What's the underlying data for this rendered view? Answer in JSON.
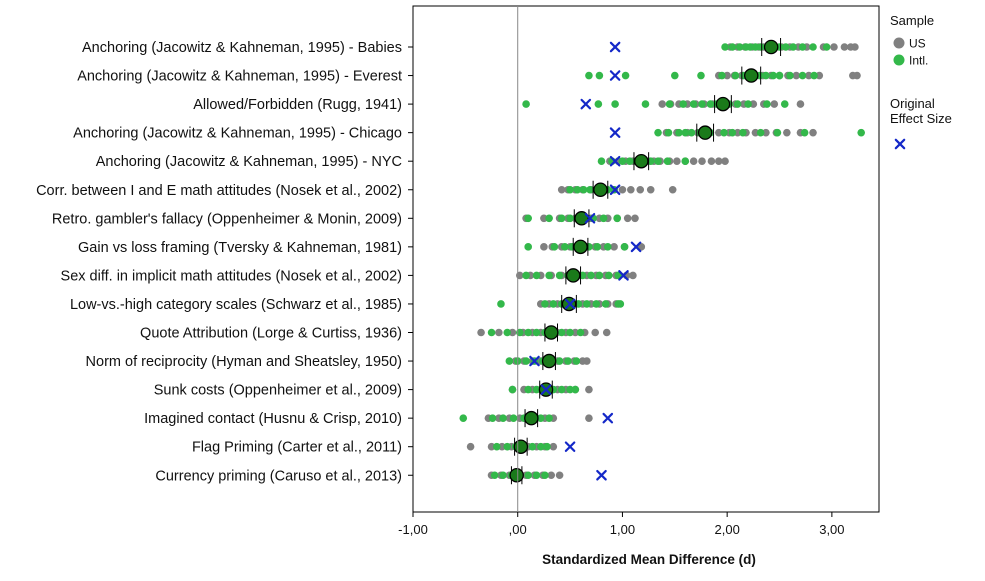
{
  "chart_data": {
    "type": "scatter",
    "xlabel": "Standardized Mean Difference (d)",
    "xlim": [
      -1.0,
      3.45
    ],
    "xticks": [
      -1,
      0,
      1,
      2,
      3
    ],
    "xtick_labels": [
      "-1,00",
      ",00",
      "1,00",
      "2,00",
      "3,00"
    ],
    "reference_line_x": 0,
    "grid": false,
    "legend": {
      "position": "right",
      "sample_title": "Sample",
      "items": [
        {
          "label": "US",
          "color": "#808080"
        },
        {
          "label": "Intl.",
          "color": "#33b84a"
        }
      ],
      "original_title_lines": [
        "Original",
        "Effect Size"
      ],
      "original_color": "#1428c8"
    },
    "colors": {
      "us": "#808080",
      "intl": "#33b84a",
      "mean_fill": "#1a7a1a",
      "original": "#1428c8"
    },
    "effects": [
      {
        "label": "Anchoring (Jacowitz & Kahneman, 1995) - Babies",
        "mean": 2.42,
        "ci": [
          2.33,
          2.51
        ],
        "original": 0.93,
        "us": [
          2.03,
          2.1,
          2.17,
          2.24,
          2.3,
          2.35,
          2.4,
          2.46,
          2.52,
          2.6,
          2.68,
          2.76,
          2.92,
          3.02,
          3.12,
          3.18,
          3.22
        ],
        "intl": [
          1.98,
          2.05,
          2.12,
          2.18,
          2.22,
          2.27,
          2.32,
          2.38,
          2.44,
          2.5,
          2.56,
          2.63,
          2.72,
          2.82,
          2.95
        ]
      },
      {
        "label": "Anchoring (Jacowitz & Kahneman, 1995) - Everest",
        "mean": 2.23,
        "ci": [
          2.14,
          2.32
        ],
        "original": 0.93,
        "us": [
          1.92,
          2.0,
          2.07,
          2.14,
          2.2,
          2.27,
          2.34,
          2.42,
          2.5,
          2.58,
          2.66,
          2.78,
          2.88,
          3.2,
          3.24
        ],
        "intl": [
          0.68,
          0.78,
          1.03,
          1.5,
          1.75,
          1.95,
          2.08,
          2.16,
          2.24,
          2.31,
          2.37,
          2.44,
          2.5,
          2.6,
          2.72,
          2.83
        ]
      },
      {
        "label": "Allowed/Forbidden (Rugg, 1941)",
        "mean": 1.96,
        "ci": [
          1.88,
          2.04
        ],
        "original": 0.65,
        "us": [
          1.38,
          1.46,
          1.54,
          1.62,
          1.7,
          1.78,
          1.86,
          1.93,
          2.0,
          2.08,
          2.16,
          2.25,
          2.35,
          2.45,
          2.7
        ],
        "intl": [
          0.08,
          0.77,
          0.93,
          1.22,
          1.45,
          1.58,
          1.68,
          1.76,
          1.84,
          1.9,
          1.96,
          2.02,
          2.1,
          2.2,
          2.38,
          2.55
        ]
      },
      {
        "label": "Anchoring (Jacowitz & Kahneman, 1995) - Chicago",
        "mean": 1.79,
        "ci": [
          1.71,
          1.87
        ],
        "original": 0.93,
        "us": [
          1.42,
          1.52,
          1.62,
          1.72,
          1.82,
          1.92,
          2.02,
          2.1,
          2.18,
          2.27,
          2.37,
          2.47,
          2.57,
          2.7,
          2.82
        ],
        "intl": [
          1.34,
          1.44,
          1.54,
          1.6,
          1.66,
          1.74,
          1.84,
          1.97,
          2.05,
          2.15,
          2.32,
          2.48,
          2.74,
          3.28
        ]
      },
      {
        "label": "Anchoring (Jacowitz & Kahneman, 1995) - NYC",
        "mean": 1.18,
        "ci": [
          1.11,
          1.25
        ],
        "original": 0.93,
        "us": [
          0.88,
          0.96,
          1.03,
          1.1,
          1.17,
          1.24,
          1.3,
          1.36,
          1.45,
          1.52,
          1.6,
          1.68,
          1.76,
          1.85,
          1.92,
          1.98
        ],
        "intl": [
          0.8,
          0.9,
          1.0,
          1.07,
          1.13,
          1.2,
          1.27,
          1.34,
          1.43,
          1.6
        ]
      },
      {
        "label": "Corr. between I and E math attitudes (Nosek et al., 2002)",
        "mean": 0.79,
        "ci": [
          0.72,
          0.86
        ],
        "original": 0.93,
        "us": [
          0.42,
          0.48,
          0.55,
          0.62,
          0.7,
          0.78,
          0.85,
          0.92,
          1.0,
          1.08,
          1.17,
          1.27,
          1.48
        ],
        "intl": [
          0.5,
          0.57,
          0.63,
          0.69,
          0.75,
          0.8,
          0.86,
          0.92
        ]
      },
      {
        "label": "Retro. gambler's fallacy (Oppenheimer & Monin, 2009)",
        "mean": 0.61,
        "ci": [
          0.54,
          0.68
        ],
        "original": 0.69,
        "us": [
          0.08,
          0.25,
          0.4,
          0.48,
          0.55,
          0.62,
          0.7,
          0.78,
          0.86,
          0.95,
          1.05,
          1.12
        ],
        "intl": [
          0.1,
          0.3,
          0.42,
          0.5,
          0.57,
          0.64,
          0.72,
          0.82,
          0.95
        ]
      },
      {
        "label": "Gain vs loss framing (Tversky & Kahneman, 1981)",
        "mean": 0.6,
        "ci": [
          0.53,
          0.67
        ],
        "original": 1.13,
        "us": [
          0.25,
          0.33,
          0.42,
          0.5,
          0.58,
          0.66,
          0.74,
          0.82,
          0.92,
          1.02,
          1.18
        ],
        "intl": [
          0.1,
          0.35,
          0.45,
          0.52,
          0.6,
          0.68,
          0.76,
          0.86,
          1.02
        ]
      },
      {
        "label": "Sex diff. in implicit math attitudes (Nosek et al., 2002)",
        "mean": 0.53,
        "ci": [
          0.46,
          0.6
        ],
        "original": 1.01,
        "us": [
          0.02,
          0.12,
          0.22,
          0.32,
          0.42,
          0.5,
          0.58,
          0.66,
          0.75,
          0.84,
          0.94,
          1.04,
          1.1
        ],
        "intl": [
          0.08,
          0.18,
          0.3,
          0.4,
          0.48,
          0.55,
          0.62,
          0.7,
          0.78,
          0.87,
          0.96
        ]
      },
      {
        "label": "Low-vs.-high category scales (Schwarz et al., 1985)",
        "mean": 0.49,
        "ci": [
          0.42,
          0.56
        ],
        "original": 0.5,
        "us": [
          0.22,
          0.3,
          0.38,
          0.46,
          0.54,
          0.62,
          0.7,
          0.78,
          0.86,
          0.94
        ],
        "intl": [
          -0.16,
          0.26,
          0.34,
          0.42,
          0.5,
          0.58,
          0.66,
          0.75,
          0.84,
          0.96,
          0.98
        ]
      },
      {
        "label": "Quote Attribution (Lorge & Curtiss, 1936)",
        "mean": 0.32,
        "ci": [
          0.26,
          0.38
        ],
        "original": null,
        "us": [
          -0.35,
          -0.18,
          -0.05,
          0.05,
          0.14,
          0.22,
          0.3,
          0.38,
          0.46,
          0.55,
          0.64,
          0.74,
          0.85
        ],
        "intl": [
          -0.25,
          -0.1,
          0.02,
          0.1,
          0.18,
          0.26,
          0.34,
          0.42,
          0.5,
          0.6
        ]
      },
      {
        "label": "Norm of reciprocity (Hyman and Sheatsley, 1950)",
        "mean": 0.3,
        "ci": [
          0.24,
          0.36
        ],
        "original": 0.16,
        "us": [
          -0.02,
          0.06,
          0.14,
          0.22,
          0.3,
          0.38,
          0.46,
          0.54,
          0.62,
          0.66
        ],
        "intl": [
          -0.08,
          0.0,
          0.08,
          0.16,
          0.24,
          0.32,
          0.4,
          0.48,
          0.56
        ]
      },
      {
        "label": "Sunk costs (Oppenheimer et al., 2009)",
        "mean": 0.27,
        "ci": [
          0.21,
          0.33
        ],
        "original": 0.27,
        "us": [
          -0.05,
          0.06,
          0.14,
          0.22,
          0.3,
          0.38,
          0.46,
          0.55,
          0.68
        ],
        "intl": [
          -0.05,
          0.1,
          0.18,
          0.26,
          0.34,
          0.42,
          0.5,
          0.55
        ]
      },
      {
        "label": "Imagined contact (Husnu & Crisp, 2010)",
        "mean": 0.13,
        "ci": [
          0.07,
          0.19
        ],
        "original": 0.86,
        "us": [
          -0.28,
          -0.18,
          -0.08,
          0.02,
          0.1,
          0.18,
          0.26,
          0.34,
          0.68
        ],
        "intl": [
          -0.52,
          -0.24,
          -0.14,
          -0.04,
          0.06,
          0.14,
          0.22,
          0.3
        ]
      },
      {
        "label": "Flag Priming (Carter et al., 2011)",
        "mean": 0.03,
        "ci": [
          -0.03,
          0.09
        ],
        "original": 0.5,
        "us": [
          -0.45,
          -0.25,
          -0.15,
          -0.06,
          0.02,
          0.1,
          0.18,
          0.26,
          0.34
        ],
        "intl": [
          -0.2,
          -0.1,
          -0.02,
          0.06,
          0.14,
          0.22,
          0.28
        ]
      },
      {
        "label": "Currency priming (Caruso et al., 2013)",
        "mean": -0.01,
        "ci": [
          -0.06,
          0.04
        ],
        "original": 0.8,
        "us": [
          -0.25,
          -0.16,
          -0.08,
          0.0,
          0.08,
          0.16,
          0.24,
          0.32,
          0.4
        ],
        "intl": [
          -0.22,
          -0.14,
          -0.06,
          0.02,
          0.1,
          0.18,
          0.26
        ]
      }
    ]
  }
}
